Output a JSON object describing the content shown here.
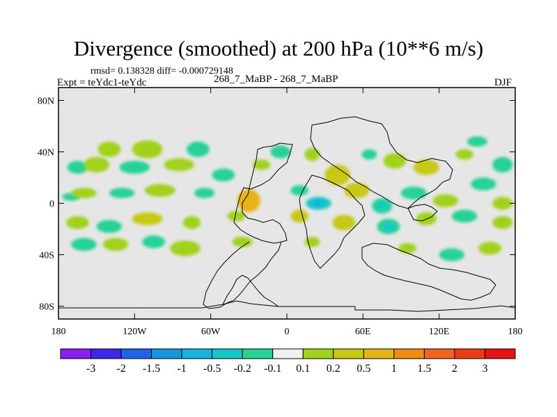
{
  "chart_data": {
    "type": "heatmap",
    "title": "Divergence (smoothed) at 200 hPa (10**6 m/s)",
    "subtitle_stats": "rmsd= 0.138328 diff= -0.000729148",
    "subtitle_expt": "Expt = teYdc1-teYdc",
    "subtitle_case": "268_7_MaBP - 268_7_MaBP",
    "subtitle_season": "DJF",
    "xlim": [
      -180,
      180
    ],
    "ylim": [
      -90,
      90
    ],
    "x_ticks": [
      {
        "value": -180,
        "label": "180"
      },
      {
        "value": -120,
        "label": "120W"
      },
      {
        "value": -60,
        "label": "60W"
      },
      {
        "value": 0,
        "label": "0"
      },
      {
        "value": 60,
        "label": "60E"
      },
      {
        "value": 120,
        "label": "120E"
      },
      {
        "value": 180,
        "label": "180"
      }
    ],
    "y_ticks": [
      {
        "value": 80,
        "label": "80N"
      },
      {
        "value": 40,
        "label": "40N"
      },
      {
        "value": 0,
        "label": "0"
      },
      {
        "value": -40,
        "label": "40S"
      },
      {
        "value": -80,
        "label": "80S"
      }
    ],
    "background_color": "#e6e6e6",
    "colorbar": {
      "labels": [
        "-3",
        "-2",
        "-1.5",
        "-1",
        "-0.5",
        "-0.2",
        "-0.1",
        "0.1",
        "0.2",
        "0.5",
        "1",
        "1.5",
        "2",
        "3"
      ],
      "colors": [
        "#8c1ff0",
        "#3c28e6",
        "#1e64e6",
        "#1496dc",
        "#14b4dc",
        "#14c8c8",
        "#28d296",
        "#f0f0f0",
        "#a0d21e",
        "#c8c814",
        "#e6b414",
        "#f08c14",
        "#f0641e",
        "#eb3c14",
        "#e61414"
      ]
    },
    "blobs": [
      {
        "lon": -170,
        "lat": 5,
        "rx": 7,
        "ry": 3,
        "value": -0.15
      },
      {
        "lon": -165,
        "lat": 28,
        "rx": 8,
        "ry": 5,
        "value": -0.12
      },
      {
        "lon": -150,
        "lat": 30,
        "rx": 10,
        "ry": 6,
        "value": 0.18
      },
      {
        "lon": -140,
        "lat": 42,
        "rx": 9,
        "ry": 6,
        "value": 0.16
      },
      {
        "lon": -110,
        "lat": 42,
        "rx": 12,
        "ry": 7,
        "value": 0.18
      },
      {
        "lon": -120,
        "lat": 28,
        "rx": 12,
        "ry": 5,
        "value": -0.15
      },
      {
        "lon": -85,
        "lat": 30,
        "rx": 12,
        "ry": 5,
        "value": 0.15
      },
      {
        "lon": -70,
        "lat": 42,
        "rx": 9,
        "ry": 6,
        "value": -0.13
      },
      {
        "lon": -50,
        "lat": 22,
        "rx": 9,
        "ry": 5,
        "value": -0.14
      },
      {
        "lon": -20,
        "lat": 30,
        "rx": 7,
        "ry": 4,
        "value": 0.16
      },
      {
        "lon": -5,
        "lat": 40,
        "rx": 8,
        "ry": 5,
        "value": -0.12
      },
      {
        "lon": 20,
        "lat": 38,
        "rx": 6,
        "ry": 5,
        "value": 0.18
      },
      {
        "lon": 40,
        "lat": 22,
        "rx": 10,
        "ry": 8,
        "value": 0.3
      },
      {
        "lon": 65,
        "lat": 38,
        "rx": 6,
        "ry": 4,
        "value": -0.14
      },
      {
        "lon": 85,
        "lat": 33,
        "rx": 9,
        "ry": 6,
        "value": 0.16
      },
      {
        "lon": 110,
        "lat": 28,
        "rx": 10,
        "ry": 6,
        "value": 0.22
      },
      {
        "lon": 140,
        "lat": 38,
        "rx": 7,
        "ry": 4,
        "value": 0.15
      },
      {
        "lon": 150,
        "lat": 48,
        "rx": 8,
        "ry": 4,
        "value": -0.12
      },
      {
        "lon": 170,
        "lat": 30,
        "rx": 8,
        "ry": 6,
        "value": -0.14
      },
      {
        "lon": -160,
        "lat": 8,
        "rx": 10,
        "ry": 4,
        "value": 0.14
      },
      {
        "lon": -130,
        "lat": 8,
        "rx": 10,
        "ry": 4,
        "value": -0.12
      },
      {
        "lon": -100,
        "lat": 10,
        "rx": 12,
        "ry": 5,
        "value": 0.16
      },
      {
        "lon": -65,
        "lat": 8,
        "rx": 8,
        "ry": 4,
        "value": -0.12
      },
      {
        "lon": -30,
        "lat": 2,
        "rx": 9,
        "ry": 9,
        "value": 0.6
      },
      {
        "lon": 10,
        "lat": 10,
        "rx": 7,
        "ry": 4,
        "value": -0.12
      },
      {
        "lon": 10,
        "lat": -10,
        "rx": 7,
        "ry": 5,
        "value": 0.2
      },
      {
        "lon": 25,
        "lat": 0,
        "rx": 10,
        "ry": 5,
        "value": -0.5
      },
      {
        "lon": 55,
        "lat": 10,
        "rx": 10,
        "ry": 6,
        "value": 0.25
      },
      {
        "lon": 75,
        "lat": -2,
        "rx": 8,
        "ry": 6,
        "value": -0.2
      },
      {
        "lon": 100,
        "lat": 8,
        "rx": 10,
        "ry": 5,
        "value": -0.15
      },
      {
        "lon": 125,
        "lat": 2,
        "rx": 10,
        "ry": 5,
        "value": 0.16
      },
      {
        "lon": 155,
        "lat": 15,
        "rx": 10,
        "ry": 5,
        "value": -0.14
      },
      {
        "lon": 170,
        "lat": 0,
        "rx": 8,
        "ry": 5,
        "value": 0.15
      },
      {
        "lon": -165,
        "lat": -15,
        "rx": 9,
        "ry": 5,
        "value": 0.16
      },
      {
        "lon": -140,
        "lat": -18,
        "rx": 10,
        "ry": 5,
        "value": -0.14
      },
      {
        "lon": -110,
        "lat": -12,
        "rx": 12,
        "ry": 5,
        "value": 0.2
      },
      {
        "lon": -75,
        "lat": -15,
        "rx": 7,
        "ry": 5,
        "value": 0.18
      },
      {
        "lon": -40,
        "lat": -10,
        "rx": 7,
        "ry": 4,
        "value": 0.15
      },
      {
        "lon": 45,
        "lat": -15,
        "rx": 9,
        "ry": 6,
        "value": 0.2
      },
      {
        "lon": 80,
        "lat": -18,
        "rx": 9,
        "ry": 6,
        "value": -0.2
      },
      {
        "lon": 110,
        "lat": -12,
        "rx": 8,
        "ry": 5,
        "value": 0.16
      },
      {
        "lon": 140,
        "lat": -10,
        "rx": 10,
        "ry": 5,
        "value": -0.14
      },
      {
        "lon": 170,
        "lat": -15,
        "rx": 8,
        "ry": 5,
        "value": 0.18
      },
      {
        "lon": -160,
        "lat": -32,
        "rx": 10,
        "ry": 5,
        "value": -0.13
      },
      {
        "lon": -135,
        "lat": -32,
        "rx": 10,
        "ry": 5,
        "value": 0.18
      },
      {
        "lon": -105,
        "lat": -30,
        "rx": 9,
        "ry": 5,
        "value": -0.13
      },
      {
        "lon": -80,
        "lat": -35,
        "rx": 12,
        "ry": 6,
        "value": 0.17
      },
      {
        "lon": -35,
        "lat": -30,
        "rx": 8,
        "ry": 4,
        "value": 0.15
      },
      {
        "lon": 20,
        "lat": -30,
        "rx": 6,
        "ry": 4,
        "value": 0.18
      },
      {
        "lon": 95,
        "lat": -35,
        "rx": 7,
        "ry": 4,
        "value": 0.15
      },
      {
        "lon": 130,
        "lat": -40,
        "rx": 10,
        "ry": 5,
        "value": -0.14
      },
      {
        "lon": 160,
        "lat": -35,
        "rx": 9,
        "ry": 5,
        "value": 0.14
      }
    ]
  }
}
